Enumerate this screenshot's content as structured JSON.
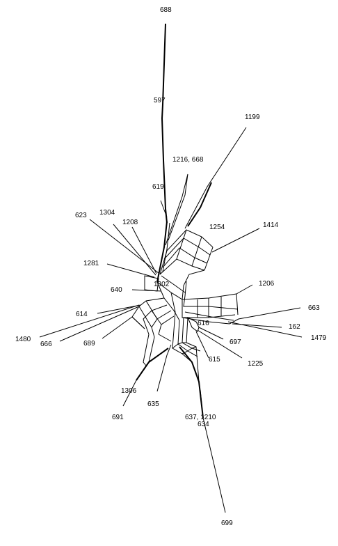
{
  "diagram": {
    "type": "split-network",
    "taxa": [
      {
        "id": "t688",
        "label": "688"
      },
      {
        "id": "t597",
        "label": "597"
      },
      {
        "id": "t1199",
        "label": "1199"
      },
      {
        "id": "t1216_668",
        "label": "1216, 668"
      },
      {
        "id": "t619",
        "label": "619"
      },
      {
        "id": "t623",
        "label": "623"
      },
      {
        "id": "t1304",
        "label": "1304"
      },
      {
        "id": "t1208",
        "label": "1208"
      },
      {
        "id": "t1254",
        "label": "1254"
      },
      {
        "id": "t1414",
        "label": "1414"
      },
      {
        "id": "t1281",
        "label": "1281"
      },
      {
        "id": "t1302",
        "label": "1302"
      },
      {
        "id": "t640",
        "label": "640"
      },
      {
        "id": "t1206",
        "label": "1206"
      },
      {
        "id": "t663",
        "label": "663"
      },
      {
        "id": "t614",
        "label": "614"
      },
      {
        "id": "t616",
        "label": "616"
      },
      {
        "id": "t162",
        "label": "162"
      },
      {
        "id": "t1480",
        "label": "1480"
      },
      {
        "id": "t666",
        "label": "666"
      },
      {
        "id": "t689",
        "label": "689"
      },
      {
        "id": "t697",
        "label": "697"
      },
      {
        "id": "t1479",
        "label": "1479"
      },
      {
        "id": "t615",
        "label": "615"
      },
      {
        "id": "t1225",
        "label": "1225"
      },
      {
        "id": "t1306",
        "label": "1306"
      },
      {
        "id": "t635",
        "label": "635"
      },
      {
        "id": "t691",
        "label": "691"
      },
      {
        "id": "t637_1210",
        "label": "637, 1210"
      },
      {
        "id": "t634",
        "label": "634"
      },
      {
        "id": "t699",
        "label": "699"
      }
    ]
  }
}
